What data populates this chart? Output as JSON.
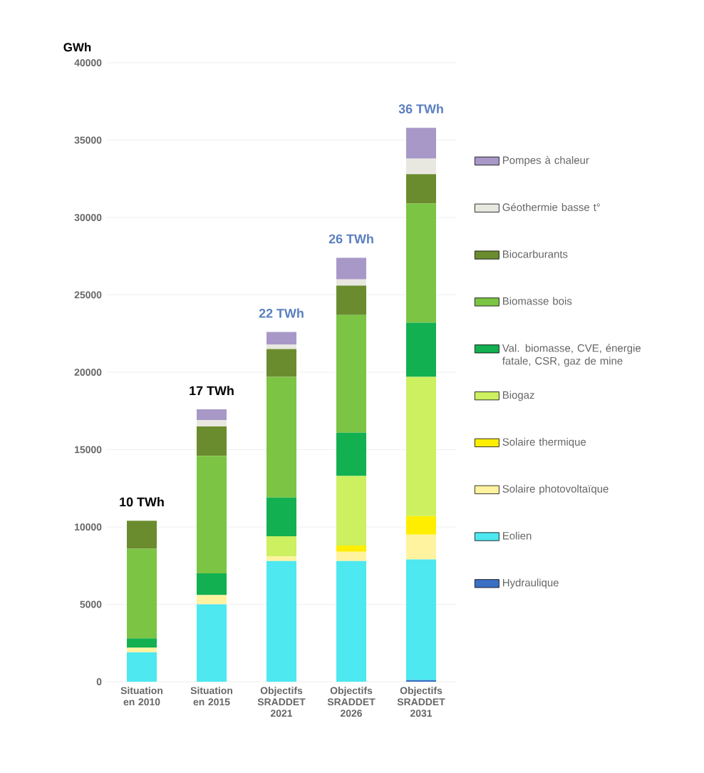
{
  "chart_data": {
    "type": "bar",
    "stacked": true,
    "ylabel": "GWh",
    "categories": [
      "Situation en 2010",
      "Situation en 2015",
      "Objectifs SRADDET 2021",
      "Objectifs SRADDET 2026",
      "Objectifs SRADDET 2031"
    ],
    "series": [
      {
        "name": "Hydraulique",
        "color": "#3a6fc4",
        "values": [
          0,
          0,
          0,
          0,
          100
        ]
      },
      {
        "name": "Eolien",
        "color": "#4de8f0",
        "values": [
          1900,
          5000,
          7800,
          7800,
          7800
        ]
      },
      {
        "name": "Solaire photovoltaïque",
        "color": "#fff3a0",
        "values": [
          300,
          600,
          300,
          600,
          1600
        ]
      },
      {
        "name": "Solaire thermique",
        "color": "#ffee00",
        "values": [
          0,
          0,
          0,
          400,
          1200
        ]
      },
      {
        "name": "Biogaz",
        "color": "#ccf060",
        "values": [
          0,
          0,
          1300,
          4500,
          9000
        ]
      },
      {
        "name": "Val. biomasse, CVE, énergie fatale, CSR, gaz de mine",
        "color": "#12b050",
        "values": [
          600,
          1400,
          2500,
          2800,
          3500
        ]
      },
      {
        "name": "Biomasse bois",
        "color": "#7cc444",
        "values": [
          5800,
          7600,
          7800,
          7600,
          7700
        ]
      },
      {
        "name": "Biocarburants",
        "color": "#6b8c2e",
        "values": [
          1800,
          1900,
          1800,
          1900,
          1900
        ]
      },
      {
        "name": "Géothermie basse t°",
        "color": "#e8e8e0",
        "values": [
          0,
          400,
          300,
          400,
          1000
        ]
      },
      {
        "name": "Pompes à chaleur",
        "color": "#a898c8",
        "values": [
          0,
          700,
          800,
          1400,
          2000
        ]
      }
    ],
    "annotations": [
      "10 TWh",
      "17 TWh",
      "22 TWh",
      "26 TWh",
      "36 TWh"
    ],
    "ylim": [
      0,
      40000
    ],
    "yticks": [
      0,
      5000,
      10000,
      15000,
      20000,
      25000,
      30000,
      35000,
      40000
    ],
    "grid": "y",
    "legend": "right"
  }
}
